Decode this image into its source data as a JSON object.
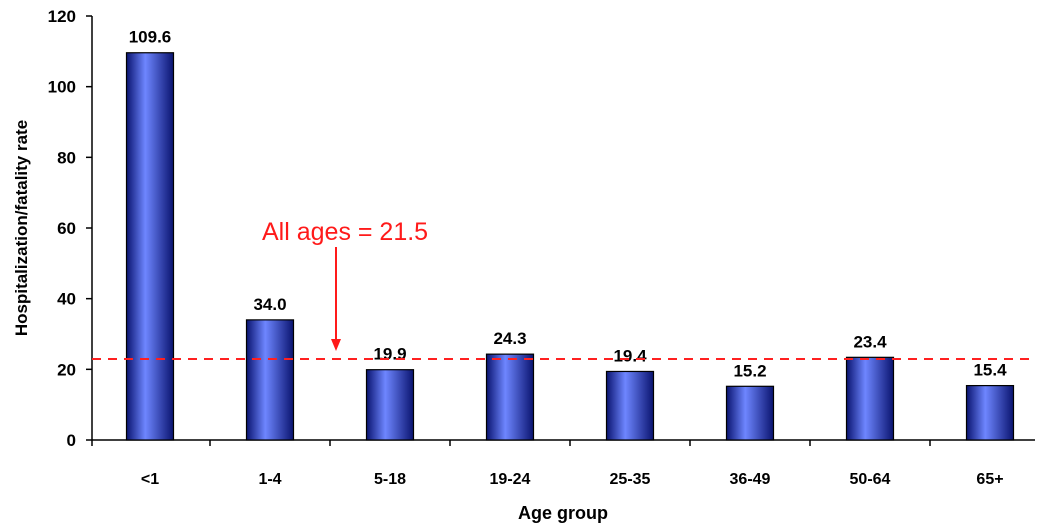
{
  "chart_data": {
    "type": "bar",
    "categories": [
      "<1",
      "1-4",
      "5-18",
      "19-24",
      "25-35",
      "36-49",
      "50-64",
      "65+"
    ],
    "values": [
      109.6,
      34.0,
      19.9,
      24.3,
      19.4,
      15.2,
      23.4,
      15.4
    ],
    "value_labels": [
      "109.6",
      "34.0",
      "19.9",
      "24.3",
      "19.4",
      "15.2",
      "23.4",
      "15.4"
    ],
    "xlabel": "Age group",
    "ylabel": "Hospitalization/fatality rate",
    "ylim": [
      0,
      120
    ],
    "yticks": [
      0,
      20,
      40,
      60,
      80,
      100,
      120
    ],
    "grid": false,
    "reference_line": {
      "value": 21.5,
      "style": "dashed"
    },
    "annotation": {
      "text": "All ages = 21.5"
    },
    "colors": {
      "bar": "#2233cc",
      "bar_dark": "#0a1470",
      "bar_light": "#6e86ff",
      "reference_line": "#ff2020",
      "annotation": "#ff1a1a"
    }
  }
}
